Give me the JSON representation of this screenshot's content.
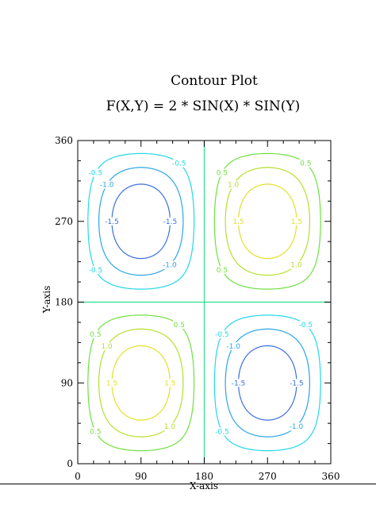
{
  "chart_data": {
    "type": "contour",
    "title": "Contour Plot",
    "subtitle": "F(X,Y) = 2 * SIN(X) * SIN(Y)",
    "xlabel": "X-axis",
    "ylabel": "Y-axis",
    "xlim": [
      0,
      360
    ],
    "ylim": [
      0,
      360
    ],
    "xticks": [
      "0",
      "90",
      "180",
      "270",
      "360"
    ],
    "yticks": [
      "0",
      "90",
      "180",
      "270",
      "360"
    ],
    "function": "F(X,Y) = 2 * SIN(X) * SIN(Y)",
    "levels": [
      {
        "value": -1.5,
        "label": "-1.5",
        "color": "#3a6fe0"
      },
      {
        "value": -1.0,
        "label": "-1.0",
        "color": "#2aa5e8"
      },
      {
        "value": -0.5,
        "label": "-0.5",
        "color": "#22d8e8"
      },
      {
        "value": 0.0,
        "label": "",
        "color": "#2ee08a"
      },
      {
        "value": 0.5,
        "label": "0.5",
        "color": "#6fe040"
      },
      {
        "value": 1.0,
        "label": "1.0",
        "color": "#b4e02c"
      },
      {
        "value": 1.5,
        "label": "1.5",
        "color": "#e4e02a"
      }
    ],
    "grid": false
  }
}
